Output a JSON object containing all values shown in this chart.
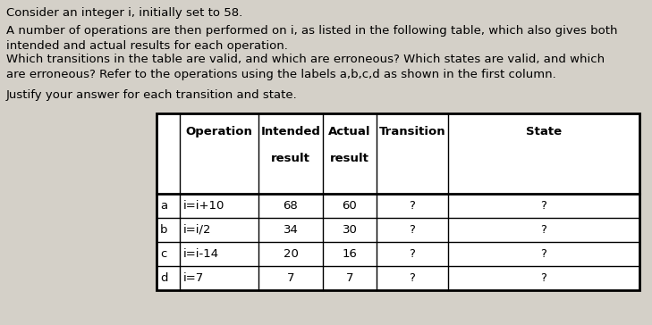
{
  "background_color": "#d4d0c8",
  "text_color": "#000000",
  "paragraphs": [
    "Consider an integer i, initially set to 58.",
    "A number of operations are then performed on i, as listed in the following table, which also gives both\nintended and actual results for each operation.",
    "Which transitions in the table are valid, and which are erroneous? Which states are valid, and which\nare erroneous? Refer to the operations using the labels a,b,c,d as shown in the first column.",
    "Justify your answer for each transition and state."
  ],
  "table_headers_line1": [
    "",
    "Operation",
    "Intended",
    "Actual",
    "Transition",
    "State"
  ],
  "table_headers_line2": [
    "",
    "",
    "result",
    "result",
    "",
    ""
  ],
  "table_rows": [
    [
      "a",
      "i=i+10",
      "68",
      "60",
      "?",
      "?"
    ],
    [
      "b",
      "i=i/2",
      "34",
      "30",
      "?",
      "?"
    ],
    [
      "c",
      "i=i-14",
      "20",
      "16",
      "?",
      "?"
    ],
    [
      "d",
      "i=7",
      "7",
      "7",
      "?",
      "?"
    ]
  ],
  "font_size_para": 9.5,
  "font_size_table": 9.5
}
